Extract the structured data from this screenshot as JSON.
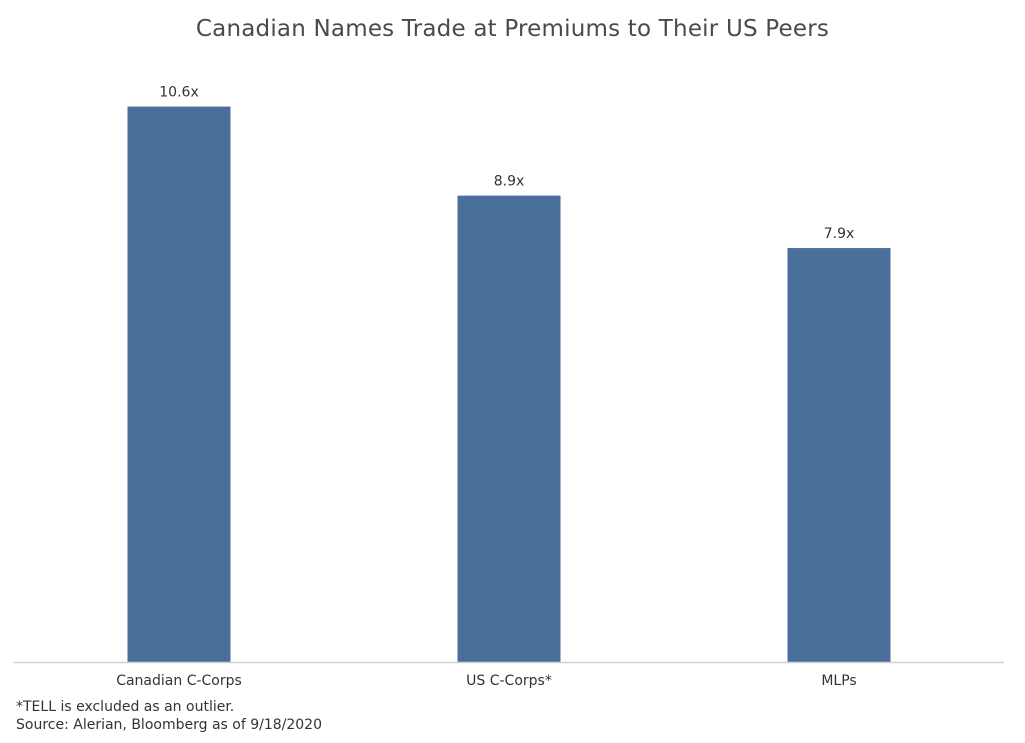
{
  "chart_data": {
    "type": "bar",
    "title": "Canadian Names Trade at Premiums to Their US Peers",
    "categories": [
      "Canadian C-Corps",
      "US C-Corps*",
      "MLPs"
    ],
    "values": [
      10.6,
      8.9,
      7.9
    ],
    "data_labels": [
      "10.6x",
      "8.9x",
      "7.9x"
    ],
    "xlabel": "",
    "ylabel": "",
    "ylim": [
      0,
      11.0
    ],
    "grid": false,
    "legend": "none",
    "bar_color": "#4b6f9b",
    "axis_color": "#d0d0d0"
  },
  "footnotes": {
    "note": "*TELL is excluded as an outlier.",
    "source": "Source: Alerian, Bloomberg as of 9/18/2020"
  }
}
